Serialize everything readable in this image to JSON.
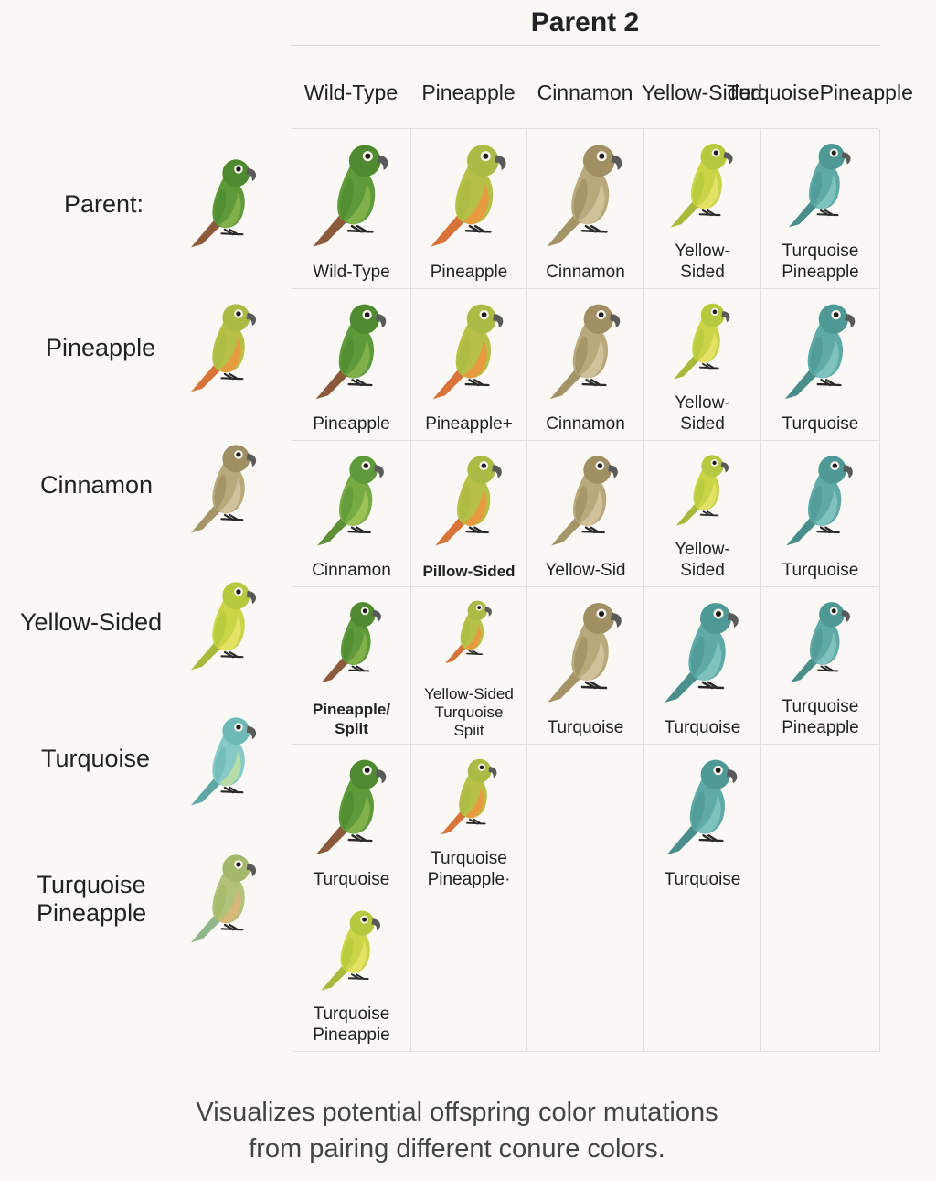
{
  "header": {
    "title": "Parent 2"
  },
  "columns": [
    "Wild-Type",
    "Pineapple",
    "Cinnamon",
    "Yellow-\nSided",
    "Turquoise\nPineapple"
  ],
  "rows": [
    {
      "label": "Parent:",
      "color": "wild"
    },
    {
      "label": "Pineapple",
      "color": "pineapple"
    },
    {
      "label": "Cinnamon",
      "color": "cinnamon"
    },
    {
      "label": "Yellow-Sided",
      "color": "yellow"
    },
    {
      "label": "Turquoise",
      "color": "turquoiseLight"
    },
    {
      "label": "Turquoise\nPineapple",
      "color": "turqPine"
    }
  ],
  "cells": [
    [
      {
        "label": "Wild-Type",
        "color": "wild"
      },
      {
        "label": "Pineapple",
        "color": "pineapple"
      },
      {
        "label": "Cinnamon",
        "color": "cinnamon"
      },
      {
        "label": "Yellow-\nSided",
        "color": "yellow"
      },
      {
        "label": "Turquoise\nPineapple",
        "color": "turquoise"
      }
    ],
    [
      {
        "label": "Pineapple",
        "color": "wild"
      },
      {
        "label": "Pineapple+",
        "color": "pineapple"
      },
      {
        "label": "Cinnamon",
        "color": "cinnamon"
      },
      {
        "label": "Yellow-\nSided",
        "color": "yellow"
      },
      {
        "label": "Turquoise",
        "color": "turquoise"
      }
    ],
    [
      {
        "label": "Cinnamon",
        "color": "wildLight"
      },
      {
        "label": "Pillow-Sided",
        "color": "pineapple",
        "bold": true
      },
      {
        "label": "Yellow-Sid",
        "color": "cinnamon"
      },
      {
        "label": "Yellow-\nSided",
        "color": "yellow"
      },
      {
        "label": "Turquoise",
        "color": "turquoise"
      }
    ],
    [
      {
        "label": "Pineapple/\nSplit",
        "color": "wild",
        "bold": true
      },
      {
        "label": "Yellow-Sided\nTurquoise\nSpiit",
        "color": "pineapple",
        "small": true
      },
      {
        "label": "Turquoise",
        "color": "cinnamon"
      },
      {
        "label": "Turquoise",
        "color": "turquoise"
      },
      {
        "label": "Turquoise\nPineapple",
        "color": "turquoise"
      }
    ],
    [
      {
        "label": "Turquoise",
        "color": "wild"
      },
      {
        "label": "Turquoise\nPineapple·",
        "color": "pineapple"
      },
      null,
      {
        "label": "Turquoise",
        "color": "turquoise"
      },
      null
    ],
    [
      {
        "label": "Turquoise\nPineappie",
        "color": "yellow"
      },
      null,
      null,
      null,
      null
    ]
  ],
  "palette": {
    "wild": {
      "body": "#5e9a3a",
      "head": "#4f8a30",
      "belly": "#7fb04a",
      "tail": "#8a5a3a"
    },
    "wildLight": {
      "body": "#76ab44",
      "head": "#5f9a3a",
      "belly": "#9ac255",
      "tail": "#5e8e36"
    },
    "pineapple": {
      "body": "#b7c046",
      "head": "#a9bb45",
      "belly": "#e89a3e",
      "tail": "#d8743a"
    },
    "cinnamon": {
      "body": "#b8a97a",
      "head": "#9f8f62",
      "belly": "#cfc199",
      "tail": "#a49467"
    },
    "yellow": {
      "body": "#c9d447",
      "head": "#b6c83e",
      "belly": "#e4e264",
      "tail": "#a8b83a"
    },
    "turquoise": {
      "body": "#5fa9a6",
      "head": "#4e9896",
      "belly": "#7fc2bd",
      "tail": "#4a8e8c"
    },
    "turquoiseLight": {
      "body": "#86c9c6",
      "head": "#6db9b6",
      "belly": "#b6dca8",
      "tail": "#5fa7a4"
    },
    "turqPine": {
      "body": "#b3c27a",
      "head": "#a3b86a",
      "belly": "#d8b87a",
      "tail": "#8fb58a"
    }
  },
  "caption": [
    "Visualizes potential offspring color mutations",
    "from pairing different conure colors."
  ]
}
